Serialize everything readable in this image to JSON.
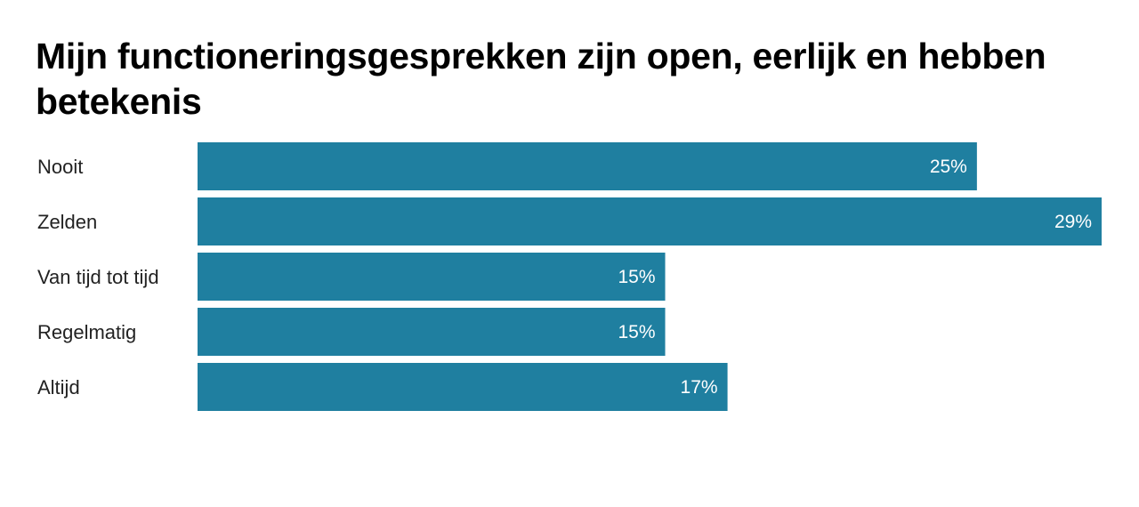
{
  "chart_data": {
    "type": "bar",
    "orientation": "horizontal",
    "title": "Mijn functioneringsgesprekken zijn open, eerlijk en hebben betekenis",
    "categories": [
      "Nooit",
      "Zelden",
      "Van tijd tot tijd",
      "Regelmatig",
      "Altijd"
    ],
    "values": [
      25,
      29,
      15,
      15,
      17
    ],
    "value_labels": [
      "25%",
      "29%",
      "15%",
      "15%",
      "17%"
    ],
    "unit": "%",
    "xlim": [
      0,
      29
    ],
    "grid": false,
    "legend": "none",
    "bar_color": "#1f7fa0"
  }
}
